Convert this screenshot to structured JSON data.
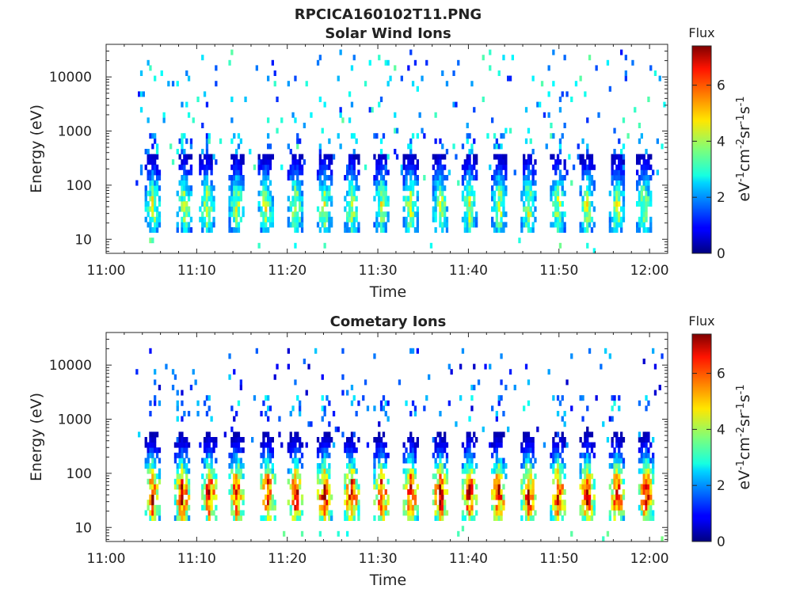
{
  "figure_title": "RPCICA160102T11.PNG",
  "colorbar": {
    "title": "Flux",
    "unit_label": "eV^-1 cm^-2 sr^-1 s^-1",
    "ticks": [
      0,
      2,
      4,
      6
    ],
    "range": [
      0,
      7.4
    ],
    "colormap": "jet"
  },
  "chart_data": [
    {
      "type": "heatmap",
      "title": "Solar Wind Ions",
      "xlabel": "Time",
      "ylabel": "Energy (eV)",
      "xlim": [
        "11:00",
        "12:02"
      ],
      "xticks": [
        "11:00",
        "11:10",
        "11:20",
        "11:30",
        "11:40",
        "11:50",
        "12:00"
      ],
      "ylim": [
        5.5,
        40000
      ],
      "yscale": "log",
      "yticks": [
        10,
        100,
        1000,
        10000
      ],
      "data_start": "11:03",
      "burst_times_min": [
        5.0,
        8.5,
        11.0,
        14.3,
        17.5,
        20.8,
        24.0,
        27.0,
        30.3,
        33.5,
        36.8,
        40.0,
        43.3,
        46.5,
        49.8,
        53.0,
        56.3,
        59.3
      ],
      "burst_peak_energy_eV": 40,
      "burst_peak_flux": 4.2,
      "burst_top_energy_eV": 400,
      "background_energy_range_eV": [
        100,
        30000
      ],
      "background_flux_range": [
        1,
        3.5
      ]
    },
    {
      "type": "heatmap",
      "title": "Cometary Ions",
      "xlabel": "Time",
      "ylabel": "Energy (eV)",
      "xlim": [
        "11:00",
        "12:02"
      ],
      "xticks": [
        "11:00",
        "11:10",
        "11:20",
        "11:30",
        "11:40",
        "11:50",
        "12:00"
      ],
      "ylim": [
        5.5,
        40000
      ],
      "yscale": "log",
      "yticks": [
        10,
        100,
        1000,
        10000
      ],
      "data_start": "11:03",
      "burst_times_min": [
        5.0,
        8.3,
        11.3,
        14.3,
        17.7,
        20.8,
        24.0,
        27.0,
        30.3,
        33.5,
        36.8,
        40.0,
        43.2,
        46.5,
        49.8,
        53.0,
        56.3,
        59.5
      ],
      "burst_peak_energy_eV": 40,
      "burst_peak_flux": 6.6,
      "burst_top_energy_eV": 1000,
      "background_energy_range_eV": [
        300,
        20000
      ],
      "background_flux_range": [
        0.5,
        2.5
      ]
    }
  ]
}
